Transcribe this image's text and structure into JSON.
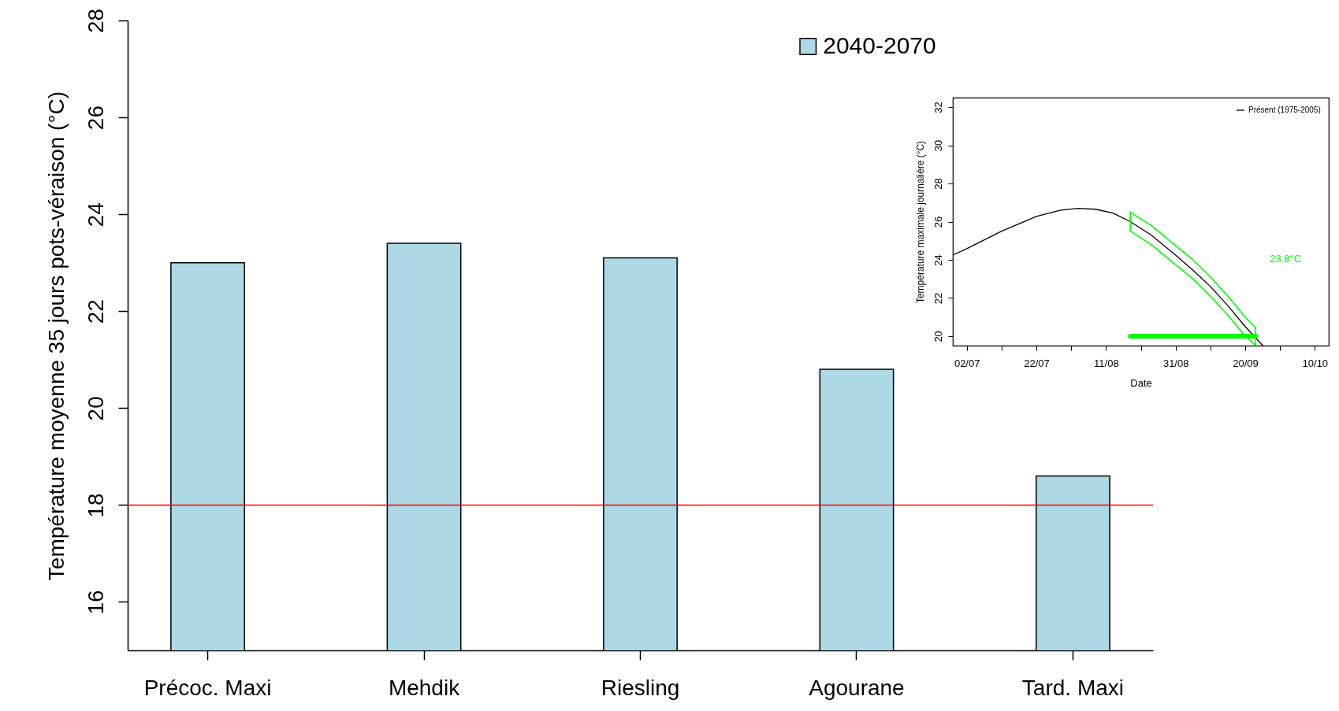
{
  "chart_data": [
    {
      "type": "bar",
      "ylabel": "Température moyenne 35 jours pots-véraison (°C)",
      "categories": [
        "Précoc. Maxi",
        "Mehdik",
        "Riesling",
        "Agourane",
        "Tard. Maxi"
      ],
      "series": [
        {
          "name": "2040-2070",
          "color": "#add8e6",
          "values": [
            23.0,
            23.4,
            23.1,
            20.8,
            18.6
          ]
        }
      ],
      "ylim": [
        15,
        28
      ],
      "yticks": [
        16,
        18,
        20,
        22,
        24,
        26,
        28
      ],
      "ref_lines": [
        {
          "axis": "y",
          "value": 18,
          "color": "#ff0000"
        }
      ],
      "legend": "top"
    },
    {
      "type": "line",
      "xlabel": "Date",
      "ylabel": "Température maximale journalière (°C)",
      "xlim": [
        "--06-28",
        "--10-14"
      ],
      "ylim": [
        19.5,
        32.5
      ],
      "xticks": [
        {
          "value": "--07-02",
          "label": "02/07"
        },
        {
          "value": "--07-12",
          "label": null
        },
        {
          "value": "--07-22",
          "label": "22/07"
        },
        {
          "value": "--08-01",
          "label": null
        },
        {
          "value": "--08-11",
          "label": "11/08"
        },
        {
          "value": "--08-21",
          "label": null
        },
        {
          "value": "--08-31",
          "label": "31/08"
        },
        {
          "value": "--09-10",
          "label": null
        },
        {
          "value": "--09-20",
          "label": "20/09"
        },
        {
          "value": "--09-30",
          "label": null
        },
        {
          "value": "--10-10",
          "label": "10/10"
        }
      ],
      "yticks": [
        20,
        22,
        24,
        26,
        28,
        30,
        32
      ],
      "series": [
        {
          "name": "Présent (1975-2005)",
          "color": "#000000",
          "x": [
            "--06-28",
            "--07-02",
            "--07-12",
            "--07-22",
            "--07-29",
            "--08-03",
            "--08-08",
            "--08-13",
            "--08-18",
            "--08-24",
            "--08-31",
            "--09-05",
            "--09-10",
            "--09-15",
            "--09-20",
            "--09-25"
          ],
          "values": [
            24.25,
            24.58,
            25.5,
            26.27,
            26.6,
            26.7,
            26.65,
            26.45,
            26.0,
            25.3,
            24.25,
            23.45,
            22.6,
            21.6,
            20.5,
            19.52
          ]
        },
        {
          "color": "#00ff00",
          "x": [
            "--08-18",
            "--08-18",
            "--08-24",
            "--08-31",
            "--09-05",
            "--09-10",
            "--09-15",
            "--09-20",
            "--09-23"
          ],
          "values": [
            25.5,
            26.5,
            25.8,
            24.75,
            24.0,
            23.1,
            22.1,
            21.0,
            20.45
          ]
        },
        {
          "color": "#00ff00",
          "x": [
            "--08-18",
            "--08-24",
            "--08-31",
            "--09-05",
            "--09-10",
            "--09-15",
            "--09-20",
            "--09-23",
            "--09-23"
          ],
          "values": [
            25.5,
            24.8,
            23.75,
            23.0,
            22.1,
            21.1,
            20.0,
            19.52,
            20.45
          ]
        },
        {
          "color": "#00ff00",
          "x": [
            "--08-18",
            "--09-23"
          ],
          "values": [
            20,
            20
          ]
        }
      ],
      "annotations": [
        "23.8°C"
      ],
      "legend": "top right"
    }
  ]
}
